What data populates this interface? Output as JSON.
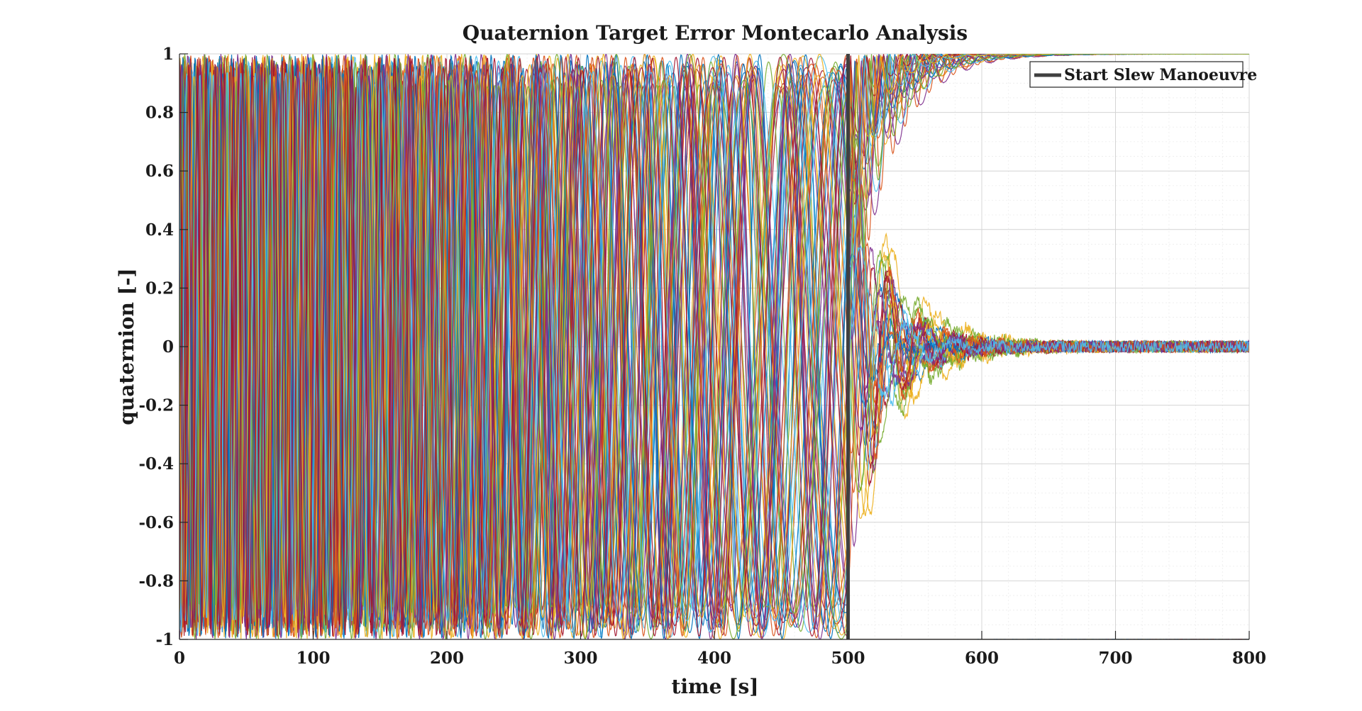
{
  "chart_data": {
    "type": "line",
    "title": "Quaternion Target Error Montecarlo Analysis",
    "xlabel": "time [s]",
    "ylabel": "quaternion [-]",
    "xlim": [
      0,
      800
    ],
    "ylim": [
      -1,
      1
    ],
    "grid": "minor",
    "xticks": [
      0,
      100,
      200,
      300,
      400,
      500,
      600,
      700,
      800
    ],
    "xtick_labels": [
      "0",
      "100",
      "200",
      "300",
      "400",
      "500",
      "600",
      "700",
      "800"
    ],
    "yticks": [
      1,
      0.8,
      0.6,
      0.4,
      0.2,
      0,
      -0.2,
      -0.4,
      -0.6,
      -0.8,
      -1
    ],
    "ytick_labels": [
      "1",
      "0.8",
      "0.6",
      "0.4",
      "0.2",
      "0",
      "-0.2",
      "-0.4",
      "-0.6",
      "-0.8",
      "-1"
    ],
    "series_colors": [
      "#0072BD",
      "#D95319",
      "#EDB120",
      "#7E2F8E",
      "#77AC30",
      "#4DBEEE",
      "#A2142F"
    ],
    "num_runs": 28,
    "event_line": {
      "x": 500,
      "label": "Start Slew Manoeuvre",
      "color": "#404040"
    },
    "legend": {
      "location": "top-right",
      "entries": [
        "Start Slew Manoeuvre"
      ]
    },
    "settled_value_components": [
      0,
      1
    ],
    "settling_time_range_s": [
      560,
      650
    ],
    "post_settle_noise_amplitude": 0.02
  }
}
